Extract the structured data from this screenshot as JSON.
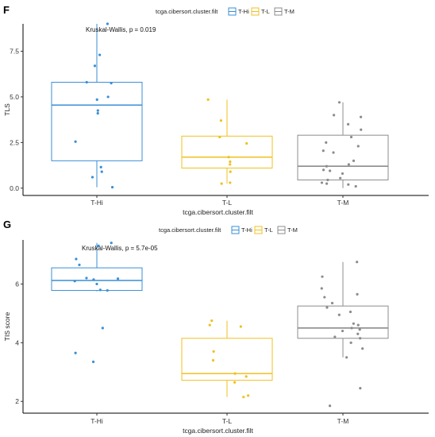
{
  "chart_data": [
    {
      "panel": "F",
      "type": "box",
      "legend_title": "tcga.cibersort.cluster.filt",
      "legend_entries": [
        "T-Hi",
        "T-L",
        "T-M"
      ],
      "colors": {
        "T-Hi": "#3a8fd6",
        "T-L": "#f0c020",
        "T-M": "#8c8c8c"
      },
      "categories": [
        "T-Hi",
        "T-L",
        "T-M"
      ],
      "xlabel": "tcga.cibersort.cluster.filt",
      "ylabel": "TLS",
      "ylim": [
        -0.4,
        9.0
      ],
      "yticks": [
        0.0,
        2.5,
        5.0,
        7.5
      ],
      "ytick_labels": [
        "0.0",
        "2.5",
        "5.0",
        "7.5"
      ],
      "annotation": "Kruskal-Wallis, p = 0.019",
      "boxes": [
        {
          "group": "T-Hi",
          "min": 0.05,
          "q1": 1.5,
          "median": 4.55,
          "q3": 5.8,
          "max": 9.0
        },
        {
          "group": "T-L",
          "min": 0.25,
          "q1": 1.1,
          "median": 1.7,
          "q3": 2.85,
          "max": 4.85
        },
        {
          "group": "T-M",
          "min": 0.0,
          "q1": 0.45,
          "median": 1.2,
          "q3": 2.9,
          "max": 4.7
        }
      ],
      "points": [
        {
          "group": "T-Hi",
          "values": [
            9.0,
            7.3,
            6.7,
            5.8,
            5.75,
            5.0,
            4.85,
            4.25,
            4.1,
            2.55,
            1.15,
            0.9,
            0.6,
            0.05
          ]
        },
        {
          "group": "T-L",
          "values": [
            4.85,
            3.7,
            2.8,
            2.45,
            1.7,
            1.45,
            1.3,
            0.9,
            0.3,
            0.25
          ]
        },
        {
          "group": "T-M",
          "values": [
            4.7,
            4.0,
            3.9,
            3.5,
            3.2,
            2.8,
            2.5,
            2.3,
            2.05,
            1.95,
            1.5,
            1.3,
            1.2,
            1.0,
            0.95,
            0.8,
            0.55,
            0.45,
            0.3,
            0.25,
            0.2,
            0.1
          ]
        }
      ]
    },
    {
      "panel": "G",
      "type": "box",
      "legend_title": "tcga.cibersort.cluster.filt",
      "legend_entries": [
        "T-Hi",
        "T-L",
        "T-M"
      ],
      "colors": {
        "T-Hi": "#3a8fd6",
        "T-L": "#f0c020",
        "T-M": "#8c8c8c"
      },
      "categories": [
        "T-Hi",
        "T-L",
        "T-M"
      ],
      "xlabel": "tcga.cibersort.cluster.filt",
      "ylabel": "TIS score",
      "ylim": [
        1.6,
        7.5
      ],
      "yticks": [
        2,
        4,
        6
      ],
      "ytick_labels": [
        "2",
        "4",
        "6"
      ],
      "annotation": "Kruskal-Wallis, p = 5.7e-05",
      "boxes": [
        {
          "group": "T-Hi",
          "min": 5.75,
          "q1": 5.78,
          "median": 6.12,
          "q3": 6.55,
          "max": 7.4
        },
        {
          "group": "T-L",
          "min": 2.15,
          "q1": 2.72,
          "median": 2.95,
          "q3": 4.15,
          "max": 4.75
        },
        {
          "group": "T-M",
          "min": 3.5,
          "q1": 4.15,
          "median": 4.5,
          "q3": 5.25,
          "max": 6.75
        }
      ],
      "points": [
        {
          "group": "T-Hi",
          "values": [
            7.4,
            7.3,
            6.85,
            6.65,
            6.2,
            6.18,
            6.15,
            6.1,
            6.0,
            5.8,
            5.78,
            4.5,
            3.65,
            3.35
          ]
        },
        {
          "group": "T-L",
          "values": [
            4.75,
            4.6,
            4.55,
            3.7,
            3.4,
            2.95,
            2.85,
            2.65,
            2.2,
            2.15
          ]
        },
        {
          "group": "T-M",
          "values": [
            6.75,
            6.25,
            5.85,
            5.65,
            5.55,
            5.35,
            5.2,
            5.05,
            4.95,
            4.65,
            4.6,
            4.5,
            4.45,
            4.4,
            4.3,
            4.2,
            4.15,
            4.0,
            3.8,
            3.5,
            2.45,
            1.85
          ]
        }
      ]
    }
  ]
}
